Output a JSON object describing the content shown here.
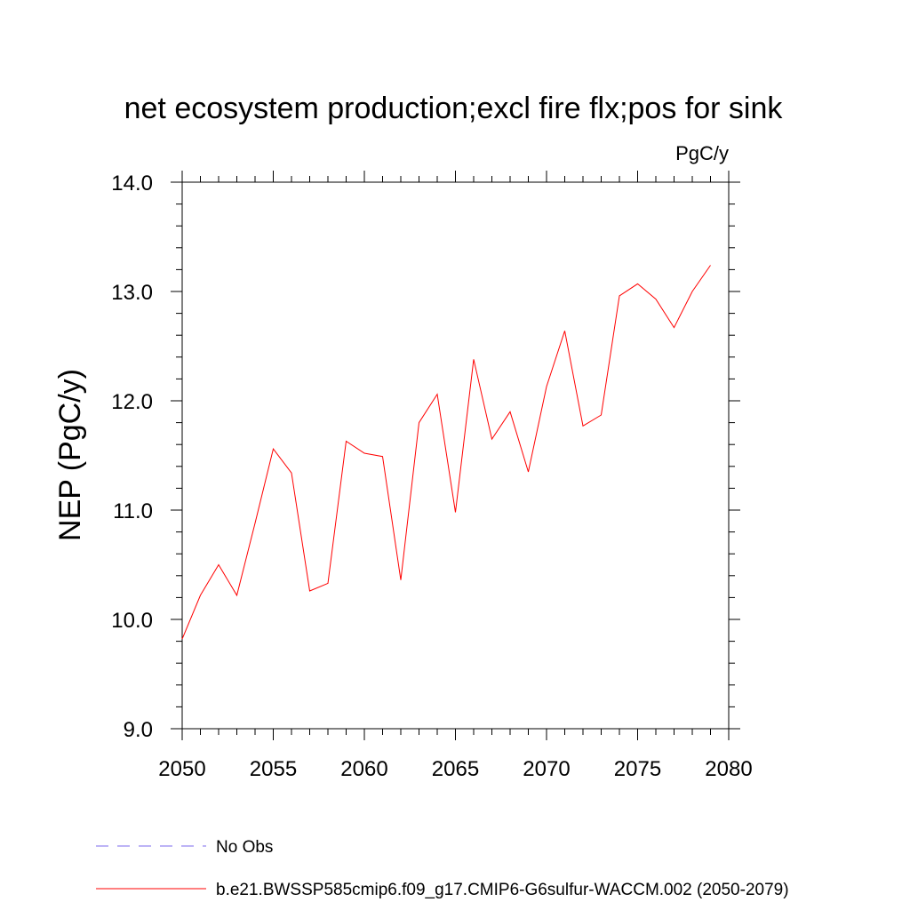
{
  "chart_data": {
    "type": "line",
    "title": "net ecosystem production;excl fire flx;pos for sink",
    "units": "PgC/y",
    "ylabel": "NEP  (PgC/y)",
    "xlabel": "",
    "xlim": [
      2050,
      2080
    ],
    "ylim": [
      9.0,
      14.0
    ],
    "x_ticks": [
      2050,
      2055,
      2060,
      2065,
      2070,
      2075,
      2080
    ],
    "x_tick_labels": [
      "2050",
      "2055",
      "2060",
      "2065",
      "2070",
      "2075",
      "2080"
    ],
    "y_ticks": [
      9.0,
      10.0,
      11.0,
      12.0,
      13.0,
      14.0
    ],
    "y_tick_labels": [
      "9.0",
      "10.0",
      "11.0",
      "12.0",
      "13.0",
      "14.0"
    ],
    "grid": false,
    "legend_position": "bottom-left",
    "series": [
      {
        "name": "b.e21.BWSSP585cmip6.f09_g17.CMIP6-G6sulfur-WACCM.002 (2050-2079)",
        "color": "#ff0000",
        "style": "solid",
        "x": [
          2050,
          2051,
          2052,
          2053,
          2054,
          2055,
          2056,
          2057,
          2058,
          2059,
          2060,
          2061,
          2062,
          2063,
          2064,
          2065,
          2066,
          2067,
          2068,
          2069,
          2070,
          2071,
          2072,
          2073,
          2074,
          2075,
          2076,
          2077,
          2078,
          2079
        ],
        "values": [
          9.82,
          10.22,
          10.5,
          10.22,
          10.88,
          11.56,
          11.34,
          10.26,
          10.33,
          11.63,
          11.52,
          11.49,
          10.36,
          11.8,
          12.06,
          10.98,
          12.38,
          11.65,
          11.9,
          11.35,
          12.13,
          12.64,
          11.77,
          11.87,
          12.96,
          13.07,
          12.93,
          12.67,
          13.0,
          13.24
        ]
      }
    ],
    "legend": [
      {
        "label": "No Obs",
        "color": "#7b68ee",
        "style": "dashed"
      },
      {
        "label": "b.e21.BWSSP585cmip6.f09_g17.CMIP6-G6sulfur-WACCM.002 (2050-2079)",
        "color": "#ff0000",
        "style": "solid"
      }
    ]
  }
}
